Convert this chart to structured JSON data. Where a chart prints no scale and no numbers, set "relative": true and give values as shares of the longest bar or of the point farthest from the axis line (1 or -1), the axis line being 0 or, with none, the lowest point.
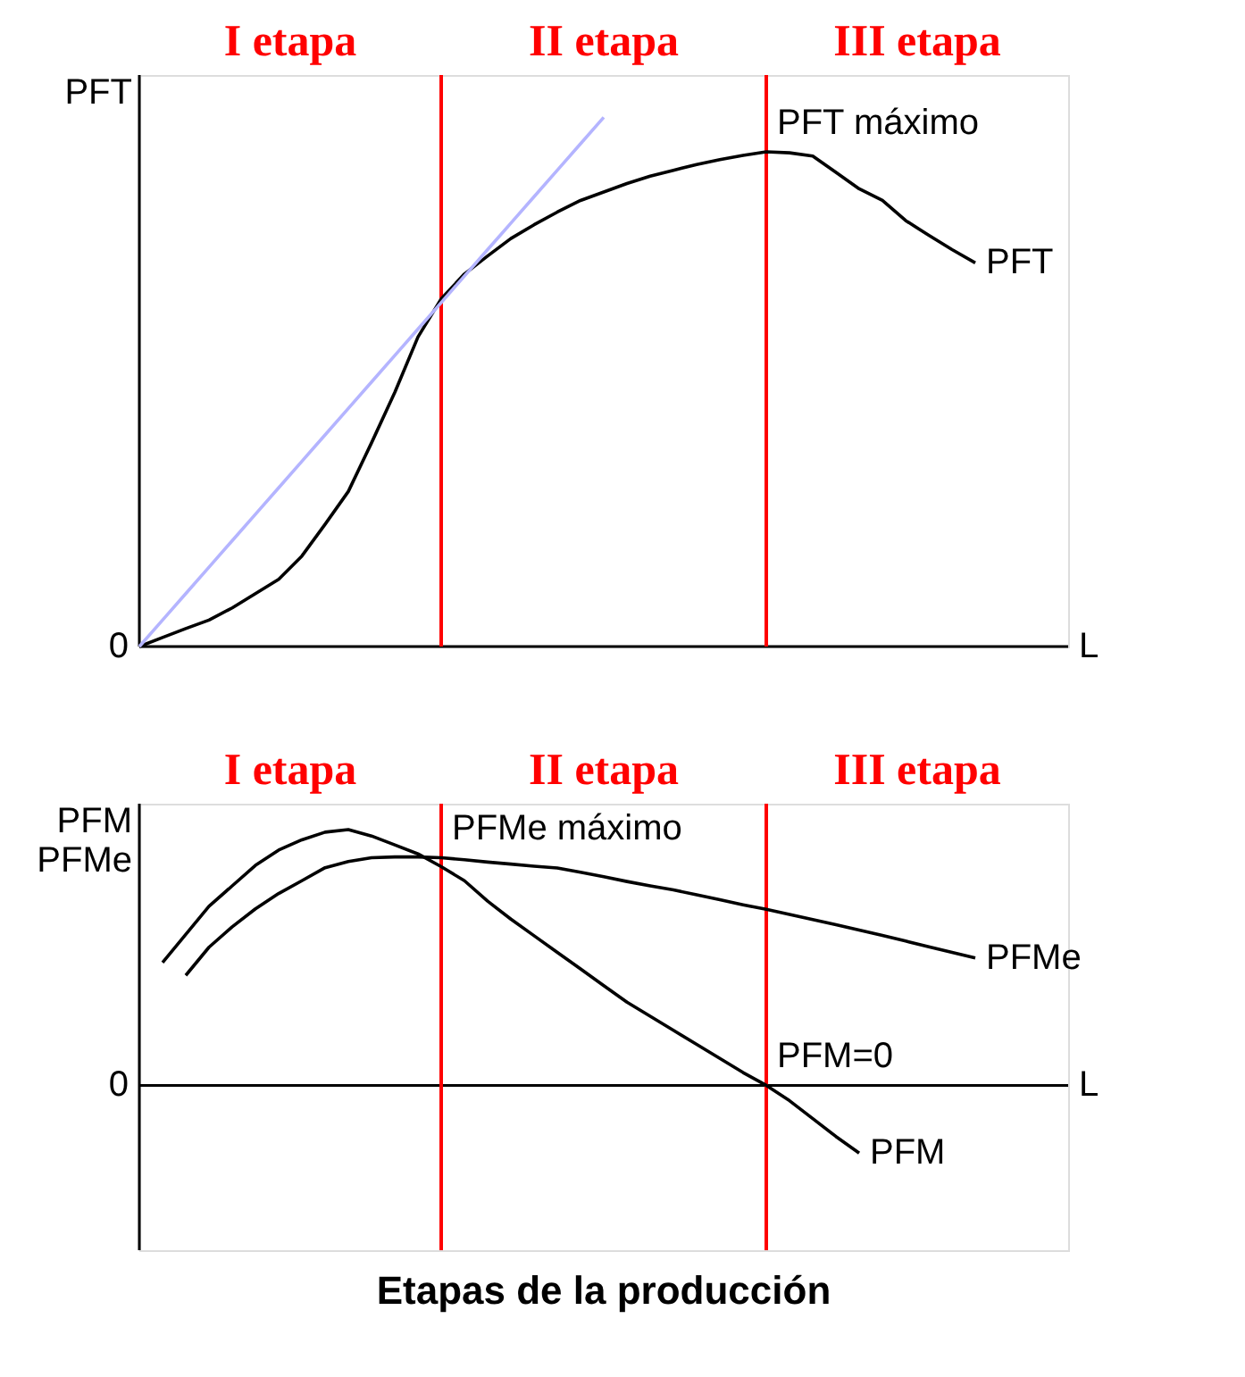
{
  "chart_data": [
    {
      "type": "line",
      "relative": true,
      "xlabel": "L",
      "ylabel": "PFT",
      "categories": [
        null,
        null,
        null,
        null,
        null,
        null,
        null,
        null,
        null,
        null,
        null,
        null,
        null,
        null,
        null,
        null,
        null,
        null,
        null,
        null,
        null,
        null,
        null,
        null,
        null,
        null,
        null,
        null,
        null,
        null,
        null,
        null,
        null,
        null,
        null,
        null,
        null,
        null,
        null,
        null,
        null
      ],
      "series": [
        {
          "name": "PFT",
          "color": "#000000",
          "values": [
            0,
            0.017,
            0.034,
            0.05,
            0.073,
            0.1,
            0.127,
            0.171,
            0.231,
            0.293,
            0.385,
            0.48,
            0.585,
            0.657,
            0.704,
            0.738,
            0.771,
            0.797,
            0.821,
            0.843,
            0.859,
            0.875,
            0.889,
            0.9,
            0.911,
            0.92,
            0.928,
            0.935,
            0.933,
            0.927,
            0.896,
            0.865,
            0.843,
            0.805,
            0.777,
            0.75,
            0.725,
            null,
            null,
            null,
            null
          ]
        },
        {
          "color": "#b4b4ff",
          "values": [
            0,
            0.05,
            0.1,
            0.15,
            0.2,
            0.25,
            0.3,
            0.35,
            0.4,
            0.45,
            0.5,
            0.55,
            0.6,
            0.65,
            0.7,
            0.75,
            0.8,
            0.85,
            0.9,
            0.95,
            1,
            null,
            null,
            null,
            null,
            null,
            null,
            null,
            null,
            null,
            null,
            null,
            null,
            null,
            null,
            null,
            null,
            null,
            null,
            null,
            null
          ]
        }
      ],
      "annotations": [
        "I etapa",
        "II etapa",
        "III etapa",
        "0",
        "PFT máximo"
      ]
    },
    {
      "type": "line",
      "relative": true,
      "xlabel": "L",
      "ylabel": "PFM\nPFMe",
      "title": "Etapas de la producción",
      "categories": [
        null,
        null,
        null,
        null,
        null,
        null,
        null,
        null,
        null,
        null,
        null,
        null,
        null,
        null,
        null,
        null,
        null,
        null,
        null,
        null,
        null,
        null,
        null,
        null,
        null,
        null,
        null,
        null,
        null,
        null,
        null,
        null,
        null,
        null,
        null,
        null,
        null,
        null,
        null,
        null,
        null
      ],
      "series": [
        {
          "name": "PFMe",
          "color": "#000000",
          "values": [
            null,
            null,
            0.43,
            0.54,
            0.62,
            0.69,
            0.75,
            0.8,
            0.851,
            0.875,
            0.89,
            0.893,
            0.893,
            0.89,
            0.882,
            0.873,
            0.865,
            0.857,
            0.85,
            0.833,
            0.816,
            0.797,
            0.78,
            0.764,
            0.745,
            0.726,
            0.706,
            0.688,
            0.668,
            0.648,
            0.628,
            0.607,
            0.586,
            0.564,
            0.542,
            0.52,
            0.498,
            null,
            null,
            null,
            null
          ]
        },
        {
          "name": "PFM",
          "color": "#000000",
          "values": [
            null,
            0.48,
            0.59,
            0.7,
            0.78,
            0.86,
            0.92,
            0.96,
            0.99,
            1,
            0.975,
            0.94,
            0.905,
            0.855,
            0.8,
            0.72,
            0.65,
            0.585,
            0.52,
            0.455,
            0.39,
            0.325,
            0.27,
            0.215,
            0.16,
            0.105,
            0.05,
            0,
            -0.06,
            -0.13,
            -0.2,
            -0.265,
            null,
            null,
            null,
            null,
            null,
            null,
            null,
            null,
            null
          ]
        }
      ],
      "annotations": [
        "I etapa",
        "II etapa",
        "III etapa",
        "0",
        "PFMe máximo",
        "PFM=0"
      ]
    }
  ]
}
